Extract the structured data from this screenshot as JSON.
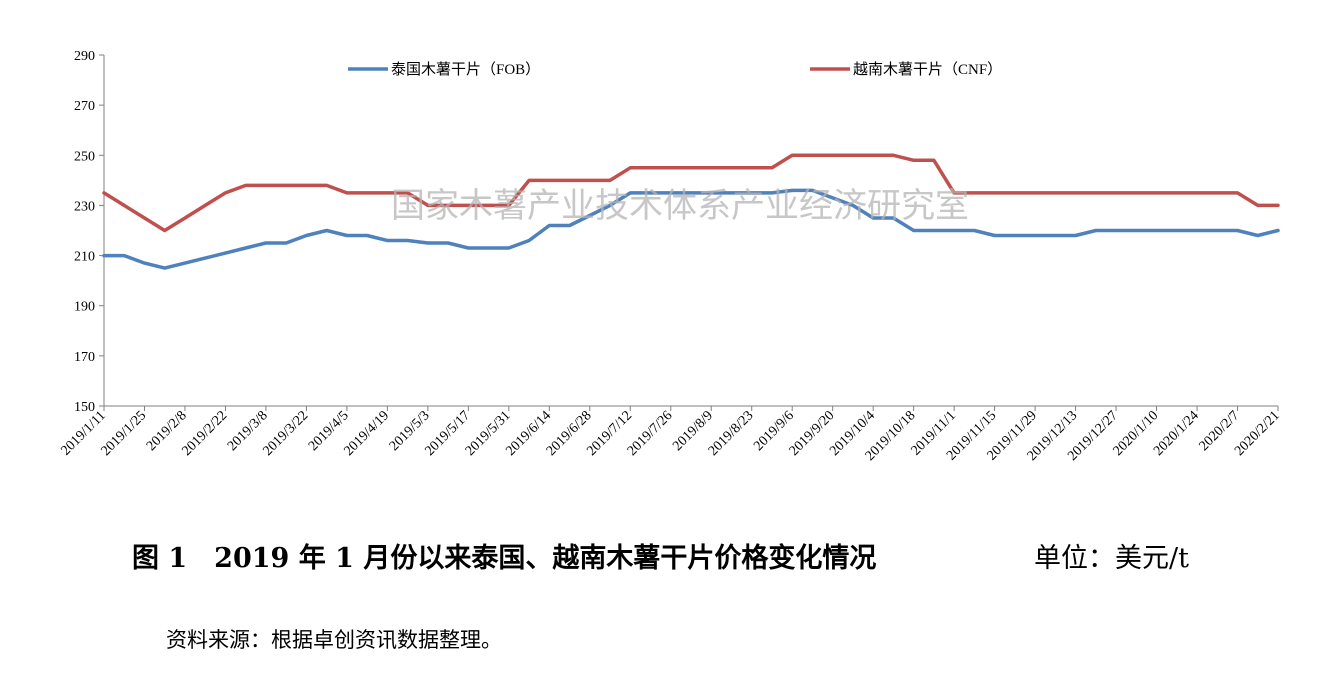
{
  "chart_data": {
    "type": "line",
    "x": [
      "2019/1/11",
      "2019/1/18",
      "2019/1/25",
      "2019/2/1",
      "2019/2/8",
      "2019/2/15",
      "2019/2/22",
      "2019/3/1",
      "2019/3/8",
      "2019/3/15",
      "2019/3/22",
      "2019/3/29",
      "2019/4/5",
      "2019/4/12",
      "2019/4/19",
      "2019/4/26",
      "2019/5/3",
      "2019/5/10",
      "2019/5/17",
      "2019/5/24",
      "2019/5/31",
      "2019/6/7",
      "2019/6/14",
      "2019/6/21",
      "2019/6/28",
      "2019/7/5",
      "2019/7/12",
      "2019/7/19",
      "2019/7/26",
      "2019/8/2",
      "2019/8/9",
      "2019/8/16",
      "2019/8/23",
      "2019/8/30",
      "2019/9/6",
      "2019/9/13",
      "2019/9/20",
      "2019/9/27",
      "2019/10/4",
      "2019/10/11",
      "2019/10/18",
      "2019/10/25",
      "2019/11/1",
      "2019/11/8",
      "2019/11/15",
      "2019/11/22",
      "2019/11/29",
      "2019/12/6",
      "2019/12/13",
      "2019/12/20",
      "2019/12/27",
      "2020/1/3",
      "2020/1/10",
      "2020/1/17",
      "2020/1/24",
      "2020/1/31",
      "2020/2/7",
      "2020/2/14",
      "2020/2/21"
    ],
    "x_tick_labels": [
      "2019/1/11",
      "2019/1/25",
      "2019/2/8",
      "2019/2/22",
      "2019/3/8",
      "2019/3/22",
      "2019/4/5",
      "2019/4/19",
      "2019/5/3",
      "2019/5/17",
      "2019/5/31",
      "2019/6/14",
      "2019/6/28",
      "2019/7/12",
      "2019/7/26",
      "2019/8/9",
      "2019/8/23",
      "2019/9/6",
      "2019/9/20",
      "2019/10/4",
      "2019/10/18",
      "2019/11/1",
      "2019/11/15",
      "2019/11/29",
      "2019/12/13",
      "2019/12/27",
      "2020/1/10",
      "2020/1/24",
      "2020/2/7",
      "2020/2/21"
    ],
    "series": [
      {
        "name": "泰国木薯干片（FOB）",
        "color": "#4F81BD",
        "values": [
          210,
          210,
          207,
          205,
          207,
          209,
          211,
          213,
          215,
          215,
          218,
          220,
          218,
          218,
          216,
          216,
          215,
          215,
          213,
          213,
          213,
          216,
          222,
          222,
          226,
          230,
          235,
          235,
          235,
          235,
          235,
          235,
          235,
          235,
          236,
          236,
          233,
          230,
          225,
          225,
          220,
          220,
          220,
          220,
          218,
          218,
          218,
          218,
          218,
          220,
          220,
          220,
          220,
          220,
          220,
          220,
          220,
          218,
          220
        ]
      },
      {
        "name": "越南木薯干片（CNF）",
        "color": "#C0504D",
        "values": [
          235,
          230,
          225,
          220,
          225,
          230,
          235,
          238,
          238,
          238,
          238,
          238,
          235,
          235,
          235,
          235,
          230,
          230,
          230,
          230,
          230,
          240,
          240,
          240,
          240,
          240,
          245,
          245,
          245,
          245,
          245,
          245,
          245,
          245,
          250,
          250,
          250,
          250,
          250,
          250,
          248,
          248,
          235,
          235,
          235,
          235,
          235,
          235,
          235,
          235,
          235,
          235,
          235,
          235,
          235,
          235,
          235,
          230,
          230
        ]
      }
    ],
    "yticks": [
      150,
      170,
      190,
      210,
      230,
      250,
      270,
      290
    ],
    "ylim": [
      150,
      290
    ],
    "grid": false,
    "legend_position": "top"
  },
  "watermark": "国家木薯产业技术体系产业经济研究室",
  "caption": "图 1　2019 年 1 月份以来泰国、越南木薯干片价格变化情况",
  "unit": "单位：美元/t",
  "source": "资料来源：根据卓创资讯数据整理。"
}
